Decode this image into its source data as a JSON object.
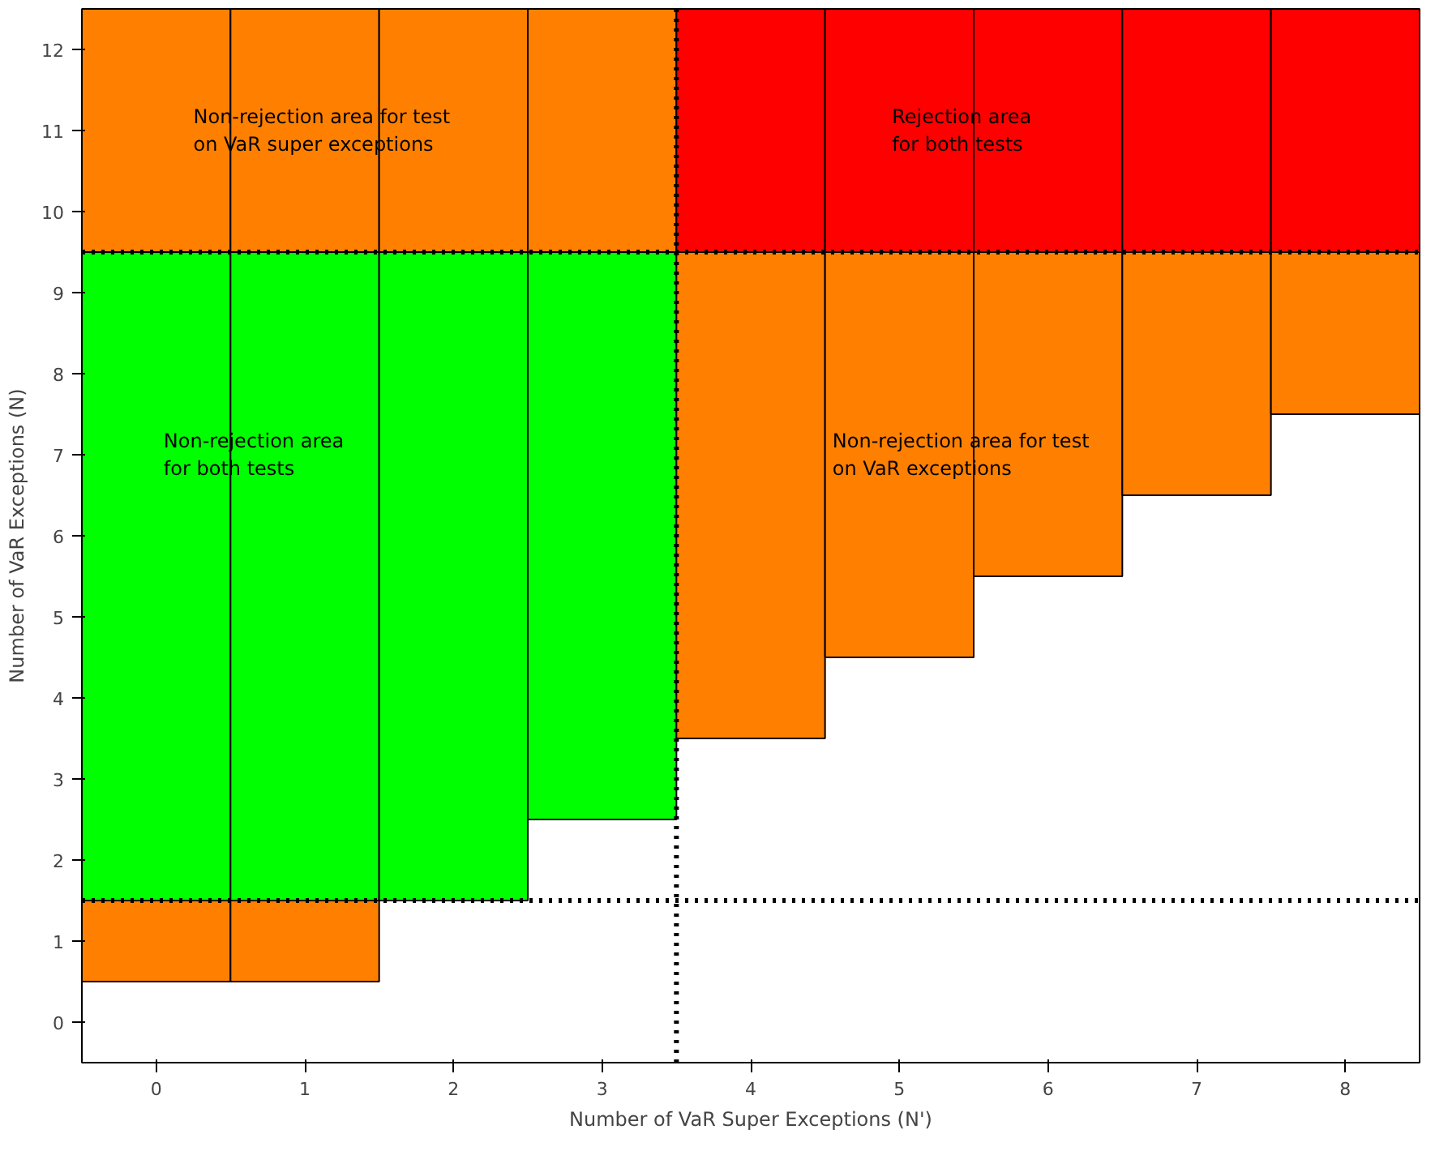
{
  "chart_data": {
    "type": "bar",
    "xlabel": "Number of VaR Super Exceptions (N')",
    "ylabel": "Number of VaR Exceptions (N)",
    "x": [
      0,
      1,
      2,
      3,
      4,
      5,
      6,
      7,
      8
    ],
    "xlim": [
      -0.5,
      8.5
    ],
    "ylim": [
      -0.5,
      12.5
    ],
    "xticks": [
      0,
      1,
      2,
      3,
      4,
      5,
      6,
      7,
      8
    ],
    "yticks": [
      0,
      1,
      2,
      3,
      4,
      5,
      6,
      7,
      8,
      9,
      10,
      11,
      12
    ],
    "series": [
      {
        "color": "#ff8000",
        "values": [
          1,
          1,
          null,
          null,
          null,
          null,
          null,
          null,
          null
        ],
        "base": [
          0.5,
          0.5,
          null,
          null,
          null,
          null,
          null,
          null,
          null
        ]
      },
      {
        "color": "#00ff00",
        "values": [
          8,
          8,
          8,
          7,
          null,
          null,
          null,
          null,
          null
        ],
        "base": [
          1.5,
          1.5,
          1.5,
          2.5,
          null,
          null,
          null,
          null,
          null
        ]
      },
      {
        "color": "#ff8000",
        "values": [
          3,
          3,
          3,
          3,
          null,
          null,
          null,
          null,
          null
        ],
        "base": [
          9.5,
          9.5,
          9.5,
          9.5,
          null,
          null,
          null,
          null,
          null
        ]
      },
      {
        "color": "#ff0000",
        "values": [
          null,
          null,
          null,
          null,
          3,
          3,
          3,
          3,
          3
        ],
        "base": [
          null,
          null,
          null,
          null,
          9.5,
          9.5,
          9.5,
          9.5,
          9.5
        ]
      },
      {
        "color": "#ff8000",
        "values": [
          null,
          null,
          null,
          null,
          6,
          5,
          4,
          3,
          2
        ],
        "base": [
          null,
          null,
          null,
          null,
          3.5,
          4.5,
          5.5,
          6.5,
          7.5
        ]
      }
    ],
    "ref_lines": [
      {
        "axis": "x",
        "value": 3.5,
        "color": "#000000",
        "line_style": "dotted"
      },
      {
        "axis": "y",
        "value": 1.5,
        "color": "#000000",
        "line_style": "dotted"
      },
      {
        "axis": "y",
        "value": 9.5,
        "color": "#000000",
        "line_style": "dotted"
      }
    ],
    "annotations": [
      "Non-rejection area for test\non VaR super exceptions",
      "Rejection area\nfor both tests",
      "Non-rejection area\nfor both tests",
      "Non-rejection area for test\non VaR exceptions"
    ]
  }
}
